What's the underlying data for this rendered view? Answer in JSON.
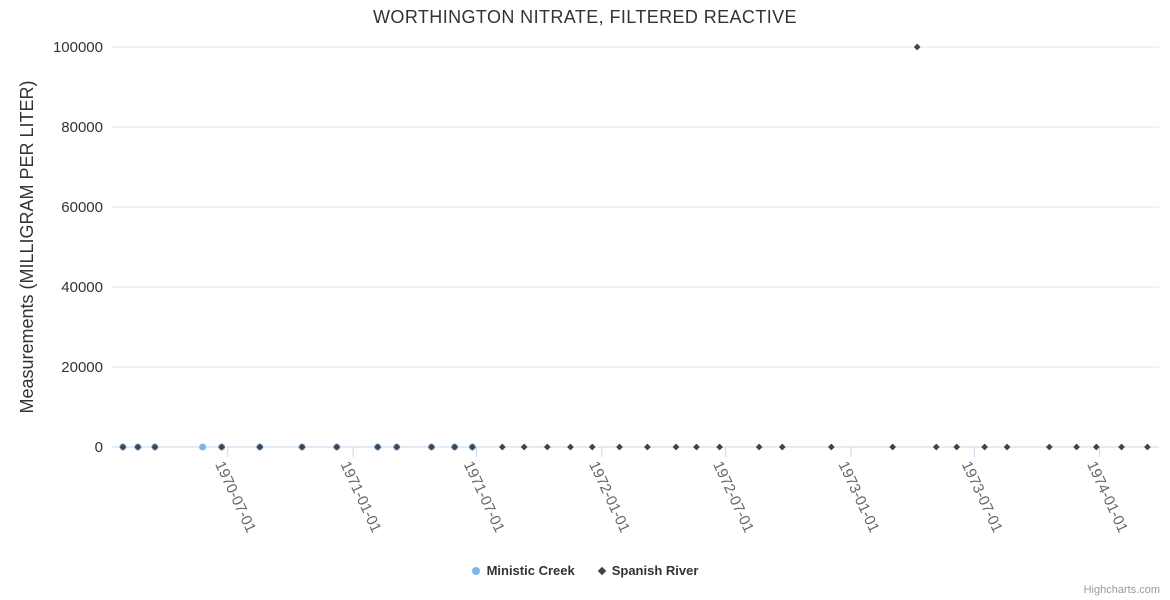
{
  "chart_data": {
    "type": "scatter",
    "title": "WORTHINGTON NITRATE, FILTERED REACTIVE",
    "xlabel": "",
    "ylabel": "Measurements (MILLIGRAM PER LITER)",
    "ylim": [
      0,
      100000
    ],
    "yticks": [
      0,
      20000,
      40000,
      60000,
      80000,
      100000
    ],
    "ytick_labels": [
      "0",
      "20000",
      "40000",
      "60000",
      "80000",
      "100000"
    ],
    "x_axis_range": [
      "1970-01-12",
      "1974-03-29"
    ],
    "xticks": [
      "1970-07-01",
      "1971-01-01",
      "1971-07-01",
      "1972-01-01",
      "1972-07-01",
      "1973-01-01",
      "1973-07-01",
      "1974-01-01"
    ],
    "grid": "horizontal",
    "legend_position": "bottom-center",
    "series": [
      {
        "name": "Ministic Creek",
        "marker": "circle",
        "color": "#7cb5ec",
        "points": [
          [
            "1970-01-28",
            0
          ],
          [
            "1970-02-19",
            0
          ],
          [
            "1970-03-16",
            0
          ],
          [
            "1970-05-25",
            0
          ],
          [
            "1970-06-22",
            0
          ],
          [
            "1970-08-17",
            0
          ],
          [
            "1970-10-18",
            0
          ],
          [
            "1970-12-08",
            0
          ],
          [
            "1971-02-06",
            0
          ],
          [
            "1971-03-06",
            0
          ],
          [
            "1971-04-26",
            0
          ],
          [
            "1971-05-30",
            0
          ],
          [
            "1971-06-25",
            0
          ]
        ]
      },
      {
        "name": "Spanish River",
        "marker": "diamond",
        "color": "#434348",
        "points": [
          [
            "1970-01-28",
            0
          ],
          [
            "1970-02-19",
            0
          ],
          [
            "1970-03-16",
            0
          ],
          [
            "1970-06-22",
            0
          ],
          [
            "1970-08-17",
            0
          ],
          [
            "1970-10-18",
            0
          ],
          [
            "1970-12-08",
            0
          ],
          [
            "1971-02-06",
            0
          ],
          [
            "1971-03-06",
            0
          ],
          [
            "1971-04-26",
            0
          ],
          [
            "1971-05-30",
            0
          ],
          [
            "1971-06-25",
            0
          ],
          [
            "1971-08-08",
            0
          ],
          [
            "1971-09-09",
            0
          ],
          [
            "1971-10-13",
            0
          ],
          [
            "1971-11-16",
            0
          ],
          [
            "1971-12-18",
            0
          ],
          [
            "1972-01-27",
            0
          ],
          [
            "1972-03-08",
            0
          ],
          [
            "1972-04-19",
            0
          ],
          [
            "1972-05-19",
            0
          ],
          [
            "1972-06-22",
            0
          ],
          [
            "1972-08-19",
            0
          ],
          [
            "1972-09-22",
            0
          ],
          [
            "1972-12-03",
            0
          ],
          [
            "1973-03-03",
            0
          ],
          [
            "1973-04-08",
            100000
          ],
          [
            "1973-05-06",
            0
          ],
          [
            "1973-06-05",
            0
          ],
          [
            "1973-07-16",
            0
          ],
          [
            "1973-08-18",
            0
          ],
          [
            "1973-10-19",
            0
          ],
          [
            "1973-11-28",
            0
          ],
          [
            "1973-12-27",
            0
          ],
          [
            "1974-02-02",
            0
          ],
          [
            "1974-03-12",
            0
          ]
        ]
      }
    ]
  },
  "credits": {
    "label": "Highcharts.com"
  },
  "colors": {
    "background": "#ffffff",
    "title": "#333333",
    "grid": "#e6e6e6",
    "axis_line": "#ccd6eb",
    "y_tick_label": "#333333",
    "x_tick_label": "#666666",
    "y_axis_title": "#333333",
    "legend_text": "#333333",
    "credits": "#999999"
  }
}
